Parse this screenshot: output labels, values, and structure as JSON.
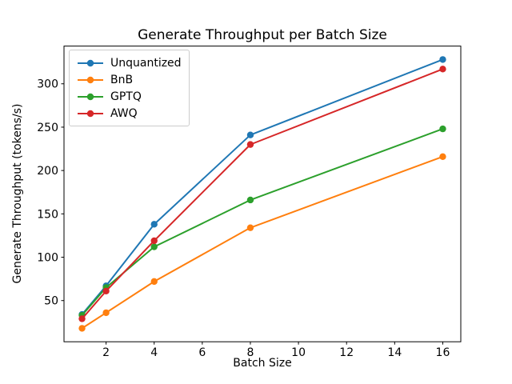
{
  "figure": {
    "background": "#ffffff",
    "text_color": "#000000",
    "legend_border_color": "#cccccc"
  },
  "chart_data": {
    "type": "line",
    "title": "Generate Throughput per Batch Size",
    "xlabel": "Batch Size",
    "ylabel": "Generate Throughput (tokens/s)",
    "x": [
      1,
      2,
      4,
      8,
      16
    ],
    "series": [
      {
        "name": "Unquantized",
        "color": "#1f77b4",
        "values": [
          34,
          67,
          138,
          241,
          328
        ]
      },
      {
        "name": "BnB",
        "color": "#ff7f0e",
        "values": [
          18,
          36,
          72,
          134,
          216
        ]
      },
      {
        "name": "GPTQ",
        "color": "#2ca02c",
        "values": [
          33,
          65,
          112,
          166,
          248
        ]
      },
      {
        "name": "AWQ",
        "color": "#d62728",
        "values": [
          29,
          61,
          119,
          230,
          317
        ]
      }
    ],
    "xticks": [
      2,
      4,
      6,
      8,
      10,
      12,
      14,
      16
    ],
    "yticks": [
      50,
      100,
      150,
      200,
      250,
      300
    ],
    "xlim": [
      0.25,
      16.75
    ],
    "ylim": [
      2.5,
      343.5
    ],
    "grid": false,
    "legend_position": "upper left",
    "marker": "o"
  }
}
